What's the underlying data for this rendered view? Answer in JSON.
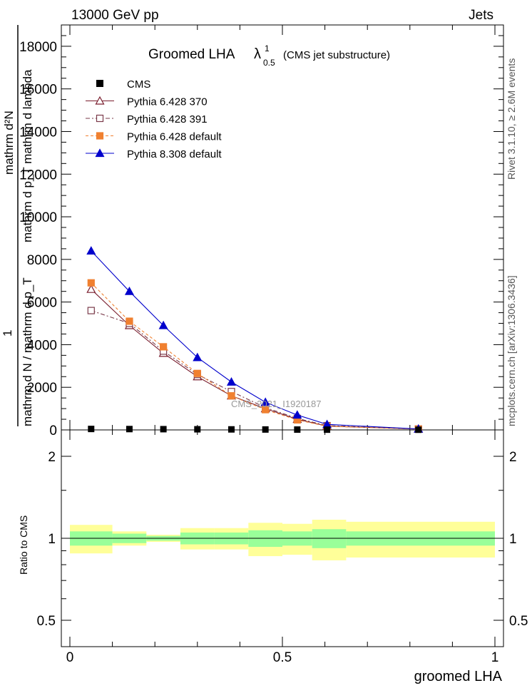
{
  "header": {
    "left": "13000 GeV pp",
    "right": "Jets"
  },
  "side_labels": {
    "rivet": "Rivet 3.1.10, ≥ 2.6M events",
    "mcplots": "mcplots.cern.ch [arXiv:1306.3436]"
  },
  "watermark": "CMS_2021_I1920187",
  "chart_data": {
    "type": "line",
    "title_main": "Groomed LHA",
    "title_symbol": "λ",
    "title_sup": "1",
    "title_sub": "0.5",
    "title_note": "(CMS jet substructure)",
    "xlabel": "groomed LHA",
    "ylabel_top": "mathrm d²N",
    "ylabel_mid": "mathrm d p_T mathrm d lambda",
    "ylabel_one": "1",
    "ylabel_bot": "mathrm d N / mathrm d p_T",
    "ratio_ylabel": "Ratio to CMS",
    "xlim": [
      0,
      1
    ],
    "ylim": [
      0,
      19000
    ],
    "ratio_ylim": [
      0.3,
      2.3
    ],
    "x_ticks": [
      "0",
      "0.5",
      "1"
    ],
    "y_ticks": [
      "0",
      "2000",
      "4000",
      "6000",
      "8000",
      "10000",
      "12000",
      "14000",
      "16000",
      "18000"
    ],
    "ratio_ticks": [
      "0.5",
      "1",
      "2"
    ],
    "bin_edges": [
      0,
      0.1,
      0.18,
      0.26,
      0.34,
      0.42,
      0.5,
      0.57,
      0.65,
      1.0
    ],
    "x": [
      0.05,
      0.14,
      0.22,
      0.3,
      0.38,
      0.46,
      0.535,
      0.605,
      0.82
    ],
    "cms": [
      45,
      40,
      35,
      30,
      25,
      20,
      16,
      12,
      8
    ],
    "band_inner": [
      0.06,
      0.04,
      0.02,
      0.05,
      0.05,
      0.07,
      0.06,
      0.08,
      0.06
    ],
    "band_outer": [
      0.12,
      0.06,
      0.03,
      0.09,
      0.09,
      0.14,
      0.13,
      0.17,
      0.15
    ],
    "series": [
      {
        "name": "Pythia 6.428 370",
        "color": "#7a1e2e",
        "marker": "triangle-open",
        "dash": "",
        "values": [
          6600,
          4900,
          3600,
          2500,
          1600,
          1000,
          500,
          180,
          40
        ]
      },
      {
        "name": "Pythia 6.428 391",
        "color": "#7a3a4a",
        "marker": "square-open",
        "dash": "6,3,2,3",
        "values": [
          5600,
          5000,
          3700,
          2600,
          1800,
          1050,
          540,
          200,
          45
        ]
      },
      {
        "name": "Pythia 6.428 default",
        "color": "#f08030",
        "marker": "square-filled",
        "dash": "4,3",
        "values": [
          6900,
          5100,
          3900,
          2650,
          1600,
          950,
          470,
          170,
          40
        ]
      },
      {
        "name": "Pythia 8.308 default",
        "color": "#0000cc",
        "marker": "triangle-filled",
        "dash": "",
        "values": [
          8400,
          6500,
          4900,
          3400,
          2250,
          1300,
          700,
          260,
          45
        ]
      }
    ],
    "legend_cms": "CMS",
    "colors": {
      "band_inner": "#99ff99",
      "band_outer": "#ffff99",
      "cms": "#000000"
    }
  }
}
